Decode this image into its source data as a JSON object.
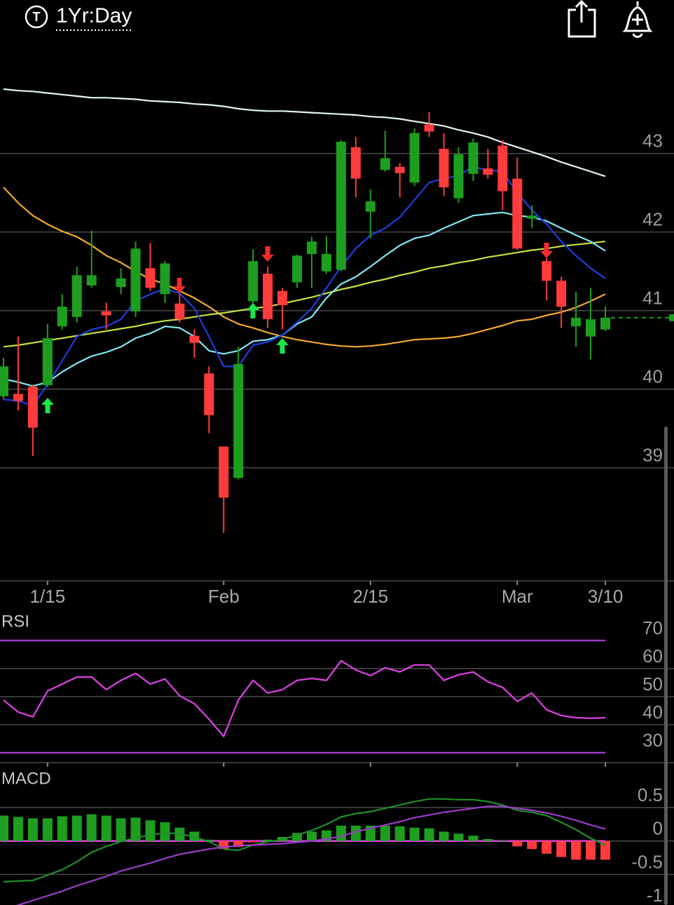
{
  "header": {
    "badge": "T",
    "period": "1Yr:Day"
  },
  "chart_data": [
    {
      "type": "candlestick",
      "categories": [
        null,
        null,
        null,
        "1/15",
        null,
        null,
        null,
        null,
        null,
        null,
        null,
        null,
        null,
        null,
        null,
        "Feb",
        null,
        null,
        null,
        null,
        null,
        null,
        null,
        null,
        null,
        "2/15",
        null,
        null,
        null,
        null,
        null,
        null,
        null,
        null,
        null,
        "Mar",
        null,
        null,
        null,
        null,
        null,
        "3/10"
      ],
      "open": [
        39.91,
        39.94,
        40.03,
        40.05,
        40.8,
        40.92,
        41.32,
        40.99,
        41.3,
        40.99,
        41.54,
        41.21,
        41.09,
        40.68,
        40.2,
        39.27,
        38.87,
        41.12,
        41.47,
        41.25,
        41.36,
        41.72,
        41.5,
        41.52,
        43.08,
        42.26,
        42.79,
        42.83,
        42.63,
        43.37,
        43.06,
        42.43,
        42.74,
        42.81,
        43.1,
        42.68,
        42.17,
        41.63,
        41.38,
        40.8,
        40.67,
        40.76
      ],
      "high": [
        40.4,
        40.67,
        40.06,
        40.83,
        41.21,
        41.56,
        42.02,
        41.1,
        41.54,
        41.88,
        41.86,
        41.63,
        41.21,
        40.76,
        40.29,
        39.27,
        40.54,
        41.78,
        41.56,
        41.29,
        41.71,
        41.94,
        41.95,
        43.17,
        43.21,
        42.54,
        43.29,
        42.88,
        43.32,
        43.53,
        43.26,
        43.08,
        43.19,
        43.06,
        43.17,
        42.95,
        42.34,
        41.67,
        41.43,
        41.24,
        41.29,
        41.05
      ],
      "low": [
        39.87,
        39.73,
        39.15,
        40.03,
        40.76,
        40.85,
        41.29,
        40.76,
        41.21,
        40.92,
        41.25,
        41.1,
        40.85,
        40.4,
        39.44,
        38.17,
        38.85,
        41.03,
        40.78,
        40.76,
        41.29,
        41.29,
        41.47,
        41.5,
        42.44,
        41.92,
        42.77,
        42.44,
        42.59,
        43.21,
        42.46,
        42.37,
        42.65,
        42.68,
        42.28,
        41.77,
        42.05,
        41.13,
        40.78,
        40.54,
        40.38,
        40.74
      ],
      "close": [
        40.29,
        39.85,
        39.51,
        40.65,
        41.05,
        41.45,
        41.45,
        40.94,
        41.41,
        41.79,
        41.29,
        41.6,
        40.89,
        40.59,
        39.67,
        38.62,
        40.32,
        41.63,
        40.89,
        41.07,
        41.7,
        41.88,
        41.72,
        43.15,
        42.68,
        42.39,
        42.94,
        42.75,
        43.26,
        43.28,
        42.57,
        42.99,
        43.14,
        42.73,
        42.52,
        41.79,
        42.21,
        41.38,
        41.05,
        40.91,
        40.89,
        40.91
      ],
      "up_color": "#1e9e1e",
      "down_color": "#ff3b3b",
      "series": [
        {
          "color": "#e4f4f8",
          "values": [
            43.82,
            43.8,
            43.79,
            43.77,
            43.75,
            43.73,
            43.71,
            43.71,
            43.7,
            43.69,
            43.67,
            43.66,
            43.65,
            43.63,
            43.62,
            43.6,
            43.57,
            43.55,
            43.54,
            43.54,
            43.53,
            43.52,
            43.51,
            43.5,
            43.49,
            43.47,
            43.46,
            43.44,
            43.41,
            43.38,
            43.35,
            43.3,
            43.26,
            43.21,
            43.14,
            43.08,
            43.02,
            42.96,
            42.89,
            42.83,
            42.77,
            42.71
          ]
        },
        {
          "color": "#f2a830",
          "values": [
            42.57,
            42.37,
            42.21,
            42.1,
            42.01,
            41.94,
            41.83,
            41.7,
            41.61,
            41.5,
            41.4,
            41.34,
            41.25,
            41.16,
            41.05,
            40.92,
            40.83,
            40.78,
            40.72,
            40.67,
            40.63,
            40.6,
            40.57,
            40.55,
            40.54,
            40.55,
            40.57,
            40.6,
            40.63,
            40.64,
            40.65,
            40.67,
            40.71,
            40.76,
            40.81,
            40.87,
            40.89,
            40.94,
            40.98,
            41.04,
            41.12,
            41.21
          ]
        },
        {
          "color": "#c6e040",
          "values": [
            40.54,
            40.56,
            40.59,
            40.62,
            40.65,
            40.68,
            40.71,
            40.74,
            40.77,
            40.8,
            40.84,
            40.87,
            40.89,
            40.92,
            40.95,
            40.97,
            41.0,
            41.03,
            41.05,
            41.09,
            41.13,
            41.17,
            41.22,
            41.27,
            41.31,
            41.36,
            41.4,
            41.45,
            41.49,
            41.54,
            41.57,
            41.61,
            41.64,
            41.68,
            41.71,
            41.74,
            41.77,
            41.79,
            41.82,
            41.84,
            41.86,
            41.88
          ]
        },
        {
          "color": "#80e8f0",
          "values": [
            40.13,
            40.09,
            40.04,
            40.09,
            40.22,
            40.33,
            40.42,
            40.47,
            40.54,
            40.65,
            40.71,
            40.8,
            40.78,
            40.67,
            40.49,
            40.45,
            40.49,
            40.61,
            40.63,
            40.69,
            40.83,
            40.92,
            41.16,
            41.34,
            41.43,
            41.56,
            41.7,
            41.83,
            41.92,
            41.96,
            42.05,
            42.13,
            42.21,
            42.23,
            42.25,
            42.21,
            42.19,
            42.14,
            42.05,
            41.96,
            41.88,
            41.76
          ]
        },
        {
          "color": "#1e3ee0",
          "values": [
            39.87,
            39.85,
            39.79,
            40.06,
            40.36,
            40.67,
            40.76,
            40.8,
            40.89,
            41.12,
            41.21,
            41.28,
            41.22,
            41.03,
            40.67,
            40.29,
            40.29,
            40.56,
            40.6,
            40.69,
            40.85,
            41.03,
            41.29,
            41.56,
            41.79,
            41.96,
            42.05,
            42.19,
            42.41,
            42.63,
            42.68,
            42.72,
            42.83,
            42.79,
            42.77,
            42.5,
            42.28,
            42.1,
            41.88,
            41.7,
            41.54,
            41.41
          ]
        }
      ],
      "ylim": [
        37.56,
        44.15
      ],
      "yticks": [
        39,
        40,
        41,
        42,
        43
      ],
      "grid": true
    },
    {
      "type": "line",
      "title": "RSI",
      "series": [
        {
          "color": "#e040e8",
          "values": [
            48.8,
            44.5,
            42.8,
            52.0,
            54.5,
            57.0,
            57.0,
            52.5,
            55.8,
            58.3,
            54.5,
            56.3,
            50.3,
            47.5,
            42.0,
            35.8,
            48.8,
            55.8,
            51.3,
            52.5,
            55.8,
            56.5,
            55.8,
            62.8,
            59.5,
            57.5,
            60.3,
            58.8,
            61.3,
            61.3,
            55.8,
            57.8,
            58.8,
            55.3,
            53.3,
            48.3,
            51.3,
            45.3,
            43.3,
            42.5,
            42.3,
            42.5
          ]
        }
      ],
      "ylim": [
        27,
        79.5
      ],
      "yticks": [
        70,
        60,
        50,
        40,
        30
      ],
      "grid": true,
      "limit_color": "#9a3cc8"
    },
    {
      "type": "combo",
      "title": "MACD",
      "series": [
        {
          "type": "bar",
          "color": "#1e9e1e",
          "negative_color": "#ff3b3b",
          "values": [
            0.38,
            0.36,
            0.34,
            0.34,
            0.37,
            0.38,
            0.4,
            0.38,
            0.34,
            0.35,
            0.31,
            0.28,
            0.2,
            0.14,
            0.02,
            -0.12,
            -0.09,
            -0.02,
            0.02,
            0.06,
            0.12,
            0.14,
            0.16,
            0.23,
            0.23,
            0.23,
            0.23,
            0.22,
            0.2,
            0.19,
            0.14,
            0.11,
            0.08,
            0.03,
            0.01,
            -0.08,
            -0.12,
            -0.19,
            -0.24,
            -0.28,
            -0.28,
            -0.28
          ]
        },
        {
          "type": "line",
          "color": "#1f8f2a",
          "values": [
            -0.61,
            -0.6,
            -0.59,
            -0.51,
            -0.43,
            -0.31,
            -0.17,
            -0.08,
            -0.01,
            0.05,
            0.09,
            0.12,
            0.11,
            0.06,
            -0.01,
            -0.12,
            -0.14,
            -0.06,
            -0.01,
            0.02,
            0.09,
            0.16,
            0.25,
            0.36,
            0.41,
            0.44,
            0.49,
            0.54,
            0.59,
            0.63,
            0.63,
            0.62,
            0.62,
            0.59,
            0.54,
            0.46,
            0.43,
            0.38,
            0.28,
            0.17,
            0.04,
            -0.06
          ]
        },
        {
          "type": "line",
          "color": "#9a3cc8",
          "values": [
            -1.02,
            -0.96,
            -0.89,
            -0.82,
            -0.75,
            -0.67,
            -0.6,
            -0.53,
            -0.45,
            -0.39,
            -0.33,
            -0.26,
            -0.2,
            -0.16,
            -0.12,
            -0.09,
            -0.07,
            -0.06,
            -0.05,
            -0.04,
            -0.02,
            0,
            0.03,
            0.07,
            0.14,
            0.19,
            0.24,
            0.29,
            0.35,
            0.39,
            0.43,
            0.46,
            0.49,
            0.52,
            0.52,
            0.49,
            0.46,
            0.42,
            0.37,
            0.31,
            0.24,
            0.18
          ]
        }
      ],
      "ylim": [
        -1,
        1.09
      ],
      "yticks": [
        0.5,
        0,
        -0.5,
        -1
      ],
      "grid": true,
      "baseline_color": "#e040e8"
    }
  ]
}
